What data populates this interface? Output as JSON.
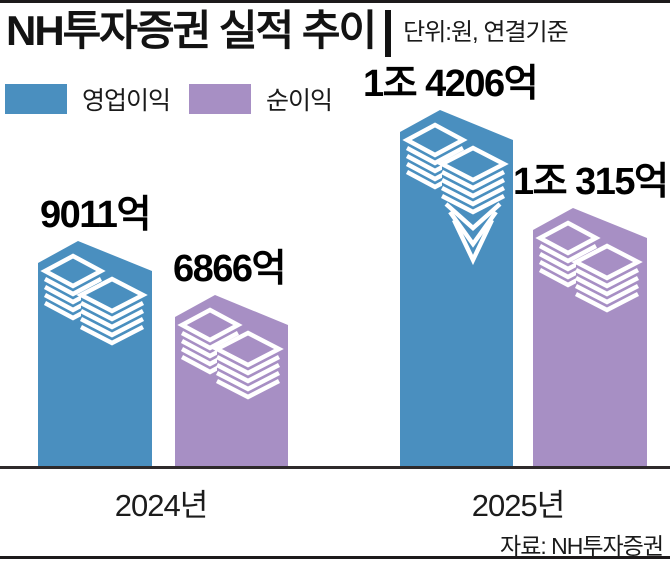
{
  "header": {
    "title": "NH투자증권 실적 추이",
    "unit_note": "단위:원, 연결기준"
  },
  "source": "자료: NH투자증권",
  "colors": {
    "operating_profit_blue": "#4a8fbf",
    "net_profit_purple": "#a78fc4",
    "rule_black": "#1d1a1b",
    "axis": "#2e2a2b"
  },
  "chart_data": {
    "type": "bar",
    "title": "NH투자증권 실적 추이",
    "unit_label": "단위:원, 연결기준",
    "categories": [
      "2024년",
      "2025년"
    ],
    "series": [
      {
        "name": "영업이익",
        "color": "#4a8fbf",
        "values_100m_krw": [
          9011,
          14206
        ],
        "values_label": [
          "9011억",
          "1조 4206억"
        ]
      },
      {
        "name": "순이익",
        "color": "#a78fc4",
        "values_100m_krw": [
          6866,
          10315
        ],
        "values_label": [
          "6866억",
          "1조 315억"
        ]
      }
    ],
    "legend_position": "top-left",
    "grid": false,
    "bar_icon": "stacked-banknotes",
    "source": "자료: NH투자증권"
  }
}
